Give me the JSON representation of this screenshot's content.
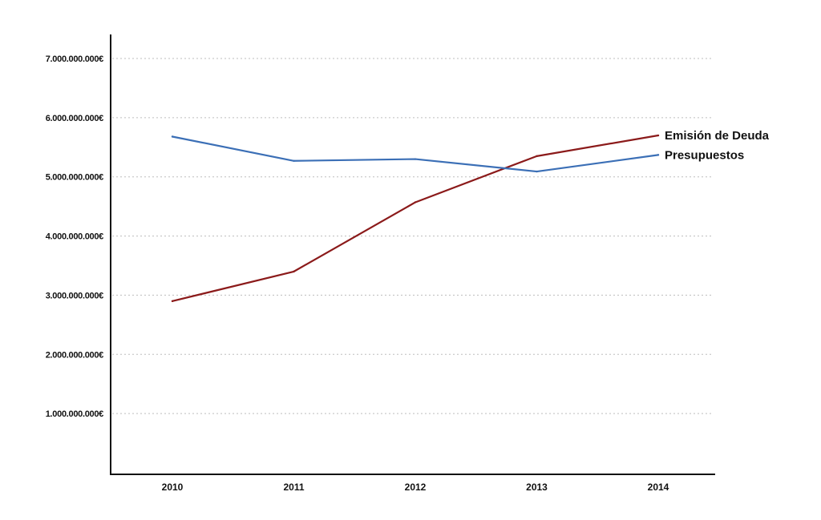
{
  "chart_data": {
    "type": "line",
    "categories": [
      "2010",
      "2011",
      "2012",
      "2013",
      "2014"
    ],
    "ylim": [
      0,
      7000000000
    ],
    "yticks": [
      1000000000,
      2000000000,
      3000000000,
      4000000000,
      5000000000,
      6000000000,
      7000000000
    ],
    "ytick_labels": [
      "1.000.000.000€",
      "2.000.000.000€",
      "3.000.000.000€",
      "4.000.000.000€",
      "5.000.000.000€",
      "6.000.000.000€",
      "7.000.000.000€"
    ],
    "grid": true,
    "legend": "end-of-line labels",
    "series": [
      {
        "name": "Emisión de Deuda",
        "color": "#8b1a1a",
        "values": [
          2900000000,
          3400000000,
          4570000000,
          5350000000,
          5700000000
        ]
      },
      {
        "name": "Presupuestos",
        "color": "#3b6fb6",
        "values": [
          5680000000,
          5270000000,
          5300000000,
          5090000000,
          5370000000
        ]
      }
    ],
    "title": "",
    "xlabel": "",
    "ylabel": ""
  }
}
